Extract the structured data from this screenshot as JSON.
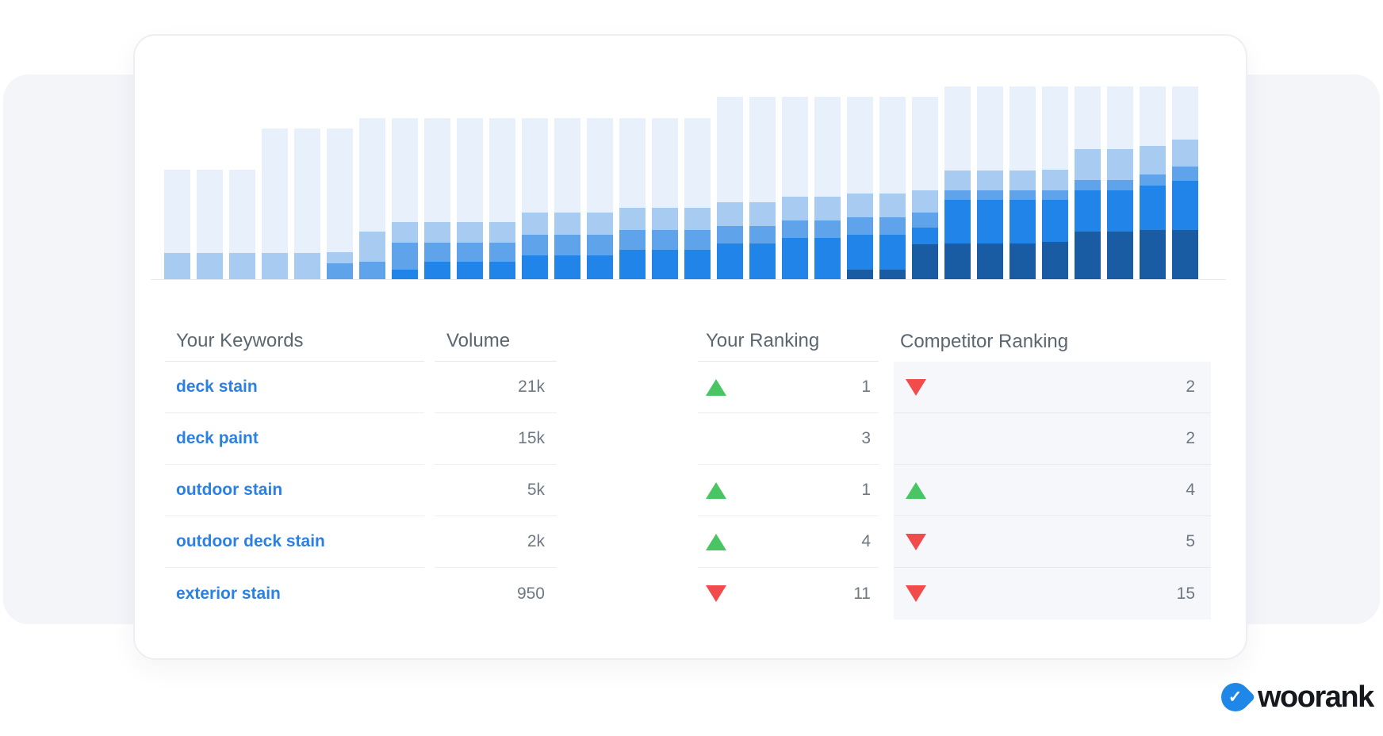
{
  "chart_data": {
    "type": "bar",
    "stacked": true,
    "title": "",
    "xlabel": "",
    "ylabel": "",
    "x_tick_labels": [],
    "y_tick_labels": [],
    "legend": "none",
    "bar_count": 32,
    "segment_order_top_to_bottom": [
      "pale",
      "light",
      "medium",
      "bright",
      "navy"
    ],
    "colors": {
      "pale": "#E8F1FB",
      "light": "#A7CBF1",
      "medium": "#5FA4EA",
      "bright": "#2184E8",
      "navy": "#1A5CA4"
    },
    "unit": "px-height-from-baseline",
    "bars": [
      {
        "total": 138,
        "light": 33,
        "medium": 0,
        "bright": 0,
        "navy": 0
      },
      {
        "total": 138,
        "light": 33,
        "medium": 0,
        "bright": 0,
        "navy": 0
      },
      {
        "total": 138,
        "light": 33,
        "medium": 0,
        "bright": 0,
        "navy": 0
      },
      {
        "total": 190,
        "light": 33,
        "medium": 0,
        "bright": 0,
        "navy": 0
      },
      {
        "total": 190,
        "light": 33,
        "medium": 0,
        "bright": 0,
        "navy": 0
      },
      {
        "total": 190,
        "light": 14,
        "medium": 20,
        "bright": 0,
        "navy": 0
      },
      {
        "total": 203,
        "light": 38,
        "medium": 22,
        "bright": 0,
        "navy": 0
      },
      {
        "total": 203,
        "light": 26,
        "medium": 34,
        "bright": 12,
        "navy": 0
      },
      {
        "total": 203,
        "light": 26,
        "medium": 24,
        "bright": 22,
        "navy": 0
      },
      {
        "total": 203,
        "light": 26,
        "medium": 24,
        "bright": 22,
        "navy": 0
      },
      {
        "total": 203,
        "light": 26,
        "medium": 24,
        "bright": 22,
        "navy": 0
      },
      {
        "total": 203,
        "light": 28,
        "medium": 26,
        "bright": 30,
        "navy": 0
      },
      {
        "total": 203,
        "light": 28,
        "medium": 26,
        "bright": 30,
        "navy": 0
      },
      {
        "total": 203,
        "light": 28,
        "medium": 26,
        "bright": 30,
        "navy": 0
      },
      {
        "total": 203,
        "light": 28,
        "medium": 25,
        "bright": 37,
        "navy": 0
      },
      {
        "total": 203,
        "light": 28,
        "medium": 25,
        "bright": 37,
        "navy": 0
      },
      {
        "total": 203,
        "light": 28,
        "medium": 25,
        "bright": 37,
        "navy": 0
      },
      {
        "total": 230,
        "light": 30,
        "medium": 22,
        "bright": 45,
        "navy": 0
      },
      {
        "total": 230,
        "light": 30,
        "medium": 22,
        "bright": 45,
        "navy": 0
      },
      {
        "total": 230,
        "light": 30,
        "medium": 22,
        "bright": 52,
        "navy": 0
      },
      {
        "total": 230,
        "light": 30,
        "medium": 22,
        "bright": 52,
        "navy": 0
      },
      {
        "total": 230,
        "light": 30,
        "medium": 22,
        "bright": 44,
        "navy": 12
      },
      {
        "total": 230,
        "light": 30,
        "medium": 22,
        "bright": 44,
        "navy": 12
      },
      {
        "total": 230,
        "light": 28,
        "medium": 19,
        "bright": 21,
        "navy": 44
      },
      {
        "total": 243,
        "light": 25,
        "medium": 12,
        "bright": 55,
        "navy": 45
      },
      {
        "total": 243,
        "light": 25,
        "medium": 12,
        "bright": 55,
        "navy": 45
      },
      {
        "total": 243,
        "light": 25,
        "medium": 12,
        "bright": 55,
        "navy": 45
      },
      {
        "total": 243,
        "light": 26,
        "medium": 12,
        "bright": 53,
        "navy": 47
      },
      {
        "total": 243,
        "light": 39,
        "medium": 13,
        "bright": 52,
        "navy": 60
      },
      {
        "total": 243,
        "light": 39,
        "medium": 13,
        "bright": 52,
        "navy": 60
      },
      {
        "total": 243,
        "light": 36,
        "medium": 14,
        "bright": 56,
        "navy": 62
      },
      {
        "total": 243,
        "light": 34,
        "medium": 18,
        "bright": 62,
        "navy": 62
      }
    ]
  },
  "table": {
    "headers": [
      "Your Keywords",
      "Volume",
      "Your Ranking",
      "Competitor Ranking"
    ],
    "trend_colors": {
      "up": "#4AC563",
      "down": "#F14B4B"
    },
    "rows": [
      {
        "keyword": "deck stain",
        "volume": "21k",
        "your_trend": "up",
        "your_rank": "1",
        "comp_trend": "down",
        "comp_rank": "2"
      },
      {
        "keyword": "deck paint",
        "volume": "15k",
        "your_trend": "none",
        "your_rank": "3",
        "comp_trend": "none",
        "comp_rank": "2"
      },
      {
        "keyword": "outdoor stain",
        "volume": "5k",
        "your_trend": "up",
        "your_rank": "1",
        "comp_trend": "up",
        "comp_rank": "4"
      },
      {
        "keyword": "outdoor deck stain",
        "volume": "2k",
        "your_trend": "up",
        "your_rank": "4",
        "comp_trend": "down",
        "comp_rank": "5"
      },
      {
        "keyword": "exterior stain",
        "volume": "950",
        "your_trend": "down",
        "your_rank": "11",
        "comp_trend": "down",
        "comp_rank": "15"
      }
    ]
  },
  "brand": {
    "wordmark": "woorank",
    "check": "✓",
    "icon_color": "#1E87E8",
    "wordmark_color": "#15181D"
  }
}
